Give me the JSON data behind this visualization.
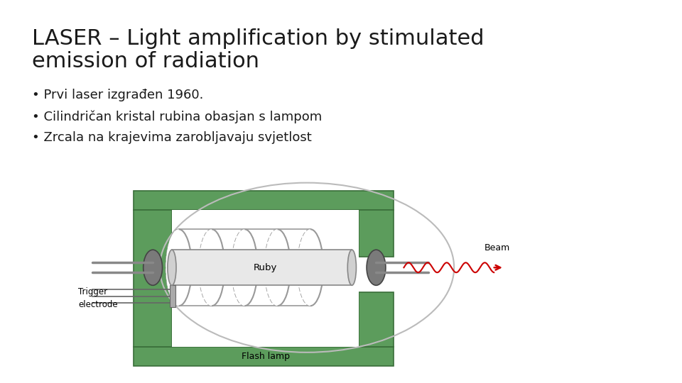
{
  "title_line1": "LASER – Light amplification by stimulated",
  "title_line2": "emission of radiation",
  "bullets": [
    "Prvi laser izgrađen 1960.",
    "Cilindričan kristal rubina obasjan s lampom",
    "Zrcala na krajevima zarobljavaju svjetlost"
  ],
  "background_color": "#ffffff",
  "title_color": "#1a1a1a",
  "bullet_color": "#1a1a1a",
  "title_fontsize": 22,
  "bullet_fontsize": 13,
  "green_color": "#5c9c5c",
  "dark_green": "#3a6e3a",
  "coil_color": "#999999",
  "ruby_fill": "#e8e8e8",
  "mirror_fill": "#777777",
  "beam_color": "#cc0000"
}
